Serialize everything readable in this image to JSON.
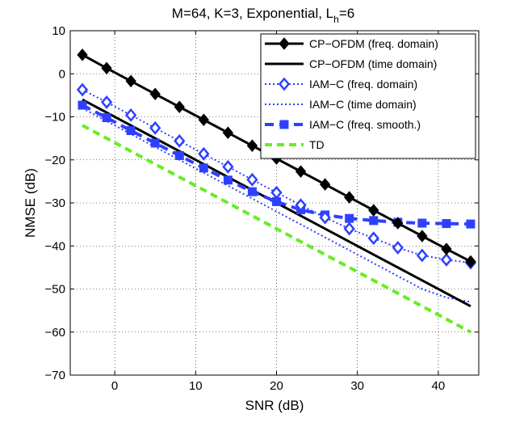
{
  "chart_data": {
    "type": "line",
    "title": {
      "main": "M=64, K=3, Exponential, L",
      "sub": "h",
      "tail": "=6"
    },
    "xlabel": "SNR (dB)",
    "ylabel": "NMSE (dB)",
    "xlim": [
      -5.5,
      45
    ],
    "ylim": [
      -70,
      10
    ],
    "xticks": [
      0,
      10,
      20,
      30,
      40
    ],
    "yticks": [
      10,
      0,
      -10,
      -20,
      -30,
      -40,
      -50,
      -60,
      -70
    ],
    "xtick_labels": [
      "0",
      "10",
      "20",
      "30",
      "40"
    ],
    "ytick_labels": [
      "10",
      "0",
      "−10",
      "−20",
      "−30",
      "−40",
      "−50",
      "−60",
      "−70"
    ],
    "grid": true,
    "legend_position": "top-right",
    "x": [
      -4,
      -1,
      2,
      5,
      8,
      11,
      14,
      17,
      20,
      23,
      26,
      29,
      32,
      35,
      38,
      41,
      44
    ],
    "series": [
      {
        "name": "CP−OFDM (freq. domain)",
        "color": "#000000",
        "style": "solid",
        "marker": "diamond-filled",
        "values": [
          4.4,
          1.3,
          -1.7,
          -4.7,
          -7.7,
          -10.7,
          -13.7,
          -16.7,
          -19.7,
          -22.7,
          -25.7,
          -28.7,
          -31.7,
          -34.7,
          -37.7,
          -40.7,
          -43.6
        ]
      },
      {
        "name": "CP−OFDM (time domain)",
        "color": "#000000",
        "style": "solid",
        "marker": "none",
        "values": [
          -6.0,
          -9.0,
          -12.0,
          -15.0,
          -18.0,
          -21.0,
          -24.0,
          -27.0,
          -30.0,
          -33.0,
          -36.0,
          -39.0,
          -42.0,
          -45.0,
          -48.0,
          -51.0,
          -54.0
        ]
      },
      {
        "name": "IAM−C (freq. domain)",
        "color": "#2e40ff",
        "style": "dotted",
        "marker": "diamond-open",
        "values": [
          -3.7,
          -6.6,
          -9.6,
          -12.6,
          -15.6,
          -18.6,
          -21.6,
          -24.6,
          -27.6,
          -30.5,
          -33.4,
          -36.0,
          -38.2,
          -40.4,
          -42.2,
          -43.2,
          -43.9
        ]
      },
      {
        "name": "IAM−C (time domain)",
        "color": "#2e40ff",
        "style": "dotted",
        "marker": "none",
        "values": [
          -8.0,
          -11.0,
          -14.0,
          -17.0,
          -20.0,
          -23.0,
          -26.0,
          -29.0,
          -32.0,
          -35.0,
          -38.0,
          -41.0,
          -44.0,
          -47.0,
          -50.0,
          -52.0,
          -53.0
        ]
      },
      {
        "name": "IAM−C (freq. smooth.)",
        "color": "#2e40ff",
        "style": "dashed",
        "marker": "square-filled",
        "values": [
          -7.3,
          -10.2,
          -13.2,
          -16.1,
          -19.0,
          -21.9,
          -24.7,
          -27.4,
          -29.7,
          -31.6,
          -32.8,
          -33.6,
          -34.1,
          -34.5,
          -34.7,
          -34.8,
          -34.9
        ]
      },
      {
        "name": "TD",
        "color": "#66ee22",
        "style": "dashed",
        "marker": "none",
        "values": [
          -12.0,
          -15.0,
          -18.0,
          -21.0,
          -24.0,
          -27.0,
          -30.0,
          -33.0,
          -36.0,
          -39.0,
          -42.0,
          -45.0,
          -48.0,
          -51.0,
          -54.0,
          -57.0,
          -60.0
        ]
      }
    ]
  }
}
